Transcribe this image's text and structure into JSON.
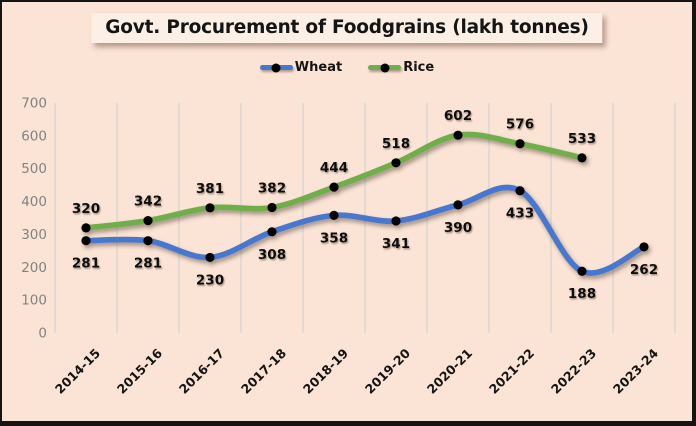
{
  "title": "Govt. Procurement of Foodgrains (lakh tonnes)",
  "colors": {
    "background": "#FBE4D5",
    "title_box": "#FCEFE5",
    "wheat": "#4677CE",
    "rice": "#6FAE4C",
    "marker": "#000000",
    "gridline": "#D9D6D0",
    "axis": "#1A1A1A",
    "y_tick_label": "#828282",
    "data_label": "#111111",
    "x_tick_label": "#141414"
  },
  "chart_data": {
    "type": "line",
    "title": "Govt. Procurement of Foodgrains (lakh tonnes)",
    "categories": [
      "2014-15",
      "2015-16",
      "2016-17",
      "2017-18",
      "2018-19",
      "2019-20",
      "2020-21",
      "2021-22",
      "2022-23",
      "2023-24"
    ],
    "series": [
      {
        "name": "Wheat",
        "color_key": "wheat",
        "values": [
          281,
          281,
          230,
          308,
          358,
          341,
          390,
          433,
          188,
          262
        ],
        "label_position": "below"
      },
      {
        "name": "Rice",
        "color_key": "rice",
        "values": [
          320,
          342,
          381,
          382,
          444,
          518,
          602,
          576,
          533,
          null
        ],
        "label_position": "above"
      }
    ],
    "xlabel": "",
    "ylabel": "",
    "ylim": [
      0,
      700
    ],
    "y_ticks": [
      0,
      100,
      200,
      300,
      400,
      500,
      600,
      700
    ],
    "grid": "vertical",
    "legend_position": "top",
    "smooth_lines": true,
    "markers": "black-circle"
  }
}
